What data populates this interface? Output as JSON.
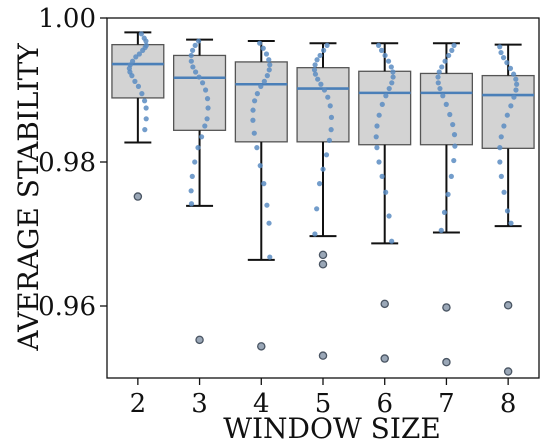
{
  "chart_data": {
    "type": "box",
    "xlabel": "WINDOW SIZE",
    "ylabel": "AVERAGE STABILITY",
    "categories": [
      "2",
      "3",
      "4",
      "5",
      "6",
      "7",
      "8"
    ],
    "ylim": [
      0.95,
      1.0
    ],
    "yticks": [
      0.96,
      0.98,
      1.0
    ],
    "ytick_labels": [
      "0.96",
      "0.98",
      "1.00"
    ],
    "grid": false,
    "colors": {
      "box_fill": "#d3d3d3",
      "box_edge": "#555555",
      "median": "#4a7fb8",
      "points": "#5b8cc2",
      "outlier_fill": "#9aa7b7",
      "outlier_edge": "#4a5563"
    },
    "boxes": [
      {
        "category": "2",
        "whisker_low": 0.9827,
        "q1": 0.9889,
        "median": 0.9936,
        "q3": 0.9963,
        "whisker_high": 0.998,
        "outliers": [
          0.9752
        ],
        "points": [
          0.9978,
          0.9972,
          0.9968,
          0.9962,
          0.9959,
          0.9955,
          0.995,
          0.9946,
          0.994,
          0.9935,
          0.993,
          0.9925,
          0.992,
          0.9912,
          0.9905,
          0.9895,
          0.9885,
          0.9875,
          0.986,
          0.9845
        ]
      },
      {
        "category": "3",
        "whisker_low": 0.9739,
        "q1": 0.9844,
        "median": 0.9917,
        "q3": 0.9948,
        "whisker_high": 0.997,
        "outliers": [
          0.9553
        ],
        "points": [
          0.9968,
          0.9962,
          0.9955,
          0.9948,
          0.994,
          0.9932,
          0.9925,
          0.9918,
          0.991,
          0.99,
          0.9888,
          0.9875,
          0.986,
          0.985,
          0.9835,
          0.982,
          0.98,
          0.978,
          0.976,
          0.9742
        ]
      },
      {
        "category": "4",
        "whisker_low": 0.9664,
        "q1": 0.9828,
        "median": 0.9908,
        "q3": 0.9939,
        "whisker_high": 0.9968,
        "outliers": [
          0.9544
        ],
        "points": [
          0.9965,
          0.9958,
          0.995,
          0.9942,
          0.9935,
          0.9928,
          0.992,
          0.9912,
          0.9905,
          0.9895,
          0.9885,
          0.9872,
          0.9858,
          0.984,
          0.982,
          0.9795,
          0.977,
          0.974,
          0.9715,
          0.9668
        ]
      },
      {
        "category": "5",
        "whisker_low": 0.9697,
        "q1": 0.9828,
        "median": 0.9902,
        "q3": 0.9931,
        "whisker_high": 0.9965,
        "outliers": [
          0.9671,
          0.9658,
          0.9531
        ],
        "points": [
          0.9962,
          0.9955,
          0.9948,
          0.9942,
          0.9935,
          0.9928,
          0.9922,
          0.9915,
          0.9908,
          0.99,
          0.989,
          0.9878,
          0.9862,
          0.9845,
          0.983,
          0.981,
          0.979,
          0.977,
          0.9735,
          0.97
        ]
      },
      {
        "category": "6",
        "whisker_low": 0.9687,
        "q1": 0.9824,
        "median": 0.9896,
        "q3": 0.9926,
        "whisker_high": 0.9965,
        "outliers": [
          0.9603,
          0.9527
        ],
        "points": [
          0.9962,
          0.9955,
          0.9948,
          0.994,
          0.9932,
          0.9925,
          0.9918,
          0.991,
          0.9902,
          0.9892,
          0.988,
          0.9865,
          0.985,
          0.9835,
          0.982,
          0.98,
          0.978,
          0.9758,
          0.9725,
          0.969
        ]
      },
      {
        "category": "7",
        "whisker_low": 0.9702,
        "q1": 0.9824,
        "median": 0.9896,
        "q3": 0.9923,
        "whisker_high": 0.9965,
        "outliers": [
          0.9598,
          0.9522
        ],
        "points": [
          0.9962,
          0.9955,
          0.9948,
          0.994,
          0.9932,
          0.9925,
          0.9918,
          0.991,
          0.9902,
          0.9892,
          0.988,
          0.9866,
          0.9852,
          0.9838,
          0.9822,
          0.9802,
          0.978,
          0.9755,
          0.973,
          0.9705
        ]
      },
      {
        "category": "8",
        "whisker_low": 0.9711,
        "q1": 0.9819,
        "median": 0.9893,
        "q3": 0.992,
        "whisker_high": 0.9963,
        "outliers": [
          0.9601,
          0.9509
        ],
        "points": [
          0.996,
          0.9952,
          0.9945,
          0.9938,
          0.993,
          0.9922,
          0.9915,
          0.9908,
          0.99,
          0.989,
          0.9878,
          0.9865,
          0.985,
          0.9835,
          0.982,
          0.98,
          0.978,
          0.9758,
          0.9732,
          0.9715
        ]
      }
    ]
  }
}
